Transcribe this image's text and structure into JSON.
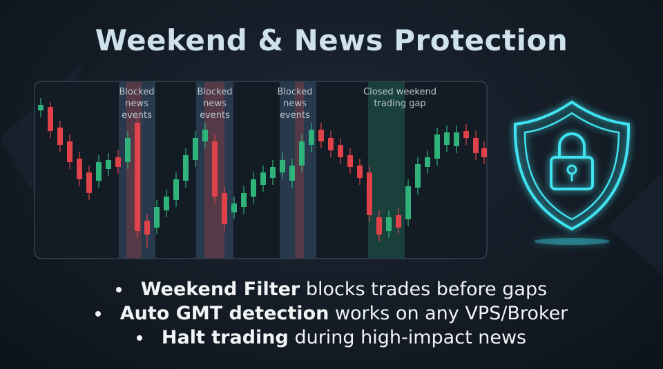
{
  "title": "Weekend & News Protection",
  "zones": [
    {
      "label": "Blocked news events"
    },
    {
      "label": "Blocked news events"
    },
    {
      "label": "Blocked news events"
    },
    {
      "label": "Closed weekend trading gap"
    }
  ],
  "bullets": [
    {
      "bold": "Weekend Filter",
      "text": "blocks trades before gaps"
    },
    {
      "bold": "Auto GMT detection",
      "text": "works on any VPS/Broker"
    },
    {
      "bold": "Halt trading",
      "text": "during high-impact news"
    }
  ]
}
